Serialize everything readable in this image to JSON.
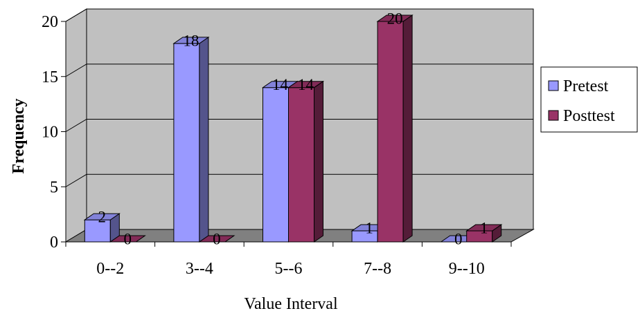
{
  "chart_data": {
    "type": "bar",
    "title": "",
    "xlabel": "Value Interval",
    "ylabel": "Frequency",
    "categories": [
      "0--2",
      "3--4",
      "5--6",
      "7--8",
      "9--10"
    ],
    "series": [
      {
        "name": "Pretest",
        "values": [
          2,
          18,
          14,
          1,
          0
        ],
        "color": "#9999ff"
      },
      {
        "name": "Posttest",
        "values": [
          0,
          0,
          14,
          20,
          1
        ],
        "color": "#993366"
      }
    ],
    "ylim": [
      0,
      20
    ],
    "yticks": [
      "0",
      "5",
      "10",
      "15",
      "20"
    ],
    "data_labels": true,
    "grid": true,
    "legend_position": "right",
    "style": "3d-clustered-column",
    "colors": {
      "wall": "#c0c0c0",
      "floor": "#808080"
    }
  }
}
